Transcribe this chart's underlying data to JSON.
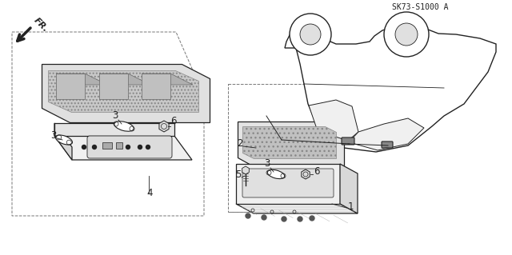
{
  "bg_color": "#ffffff",
  "line_color": "#222222",
  "text_color": "#222222",
  "part_code": "SK73-S1000 A",
  "label_font_size": 8.5
}
